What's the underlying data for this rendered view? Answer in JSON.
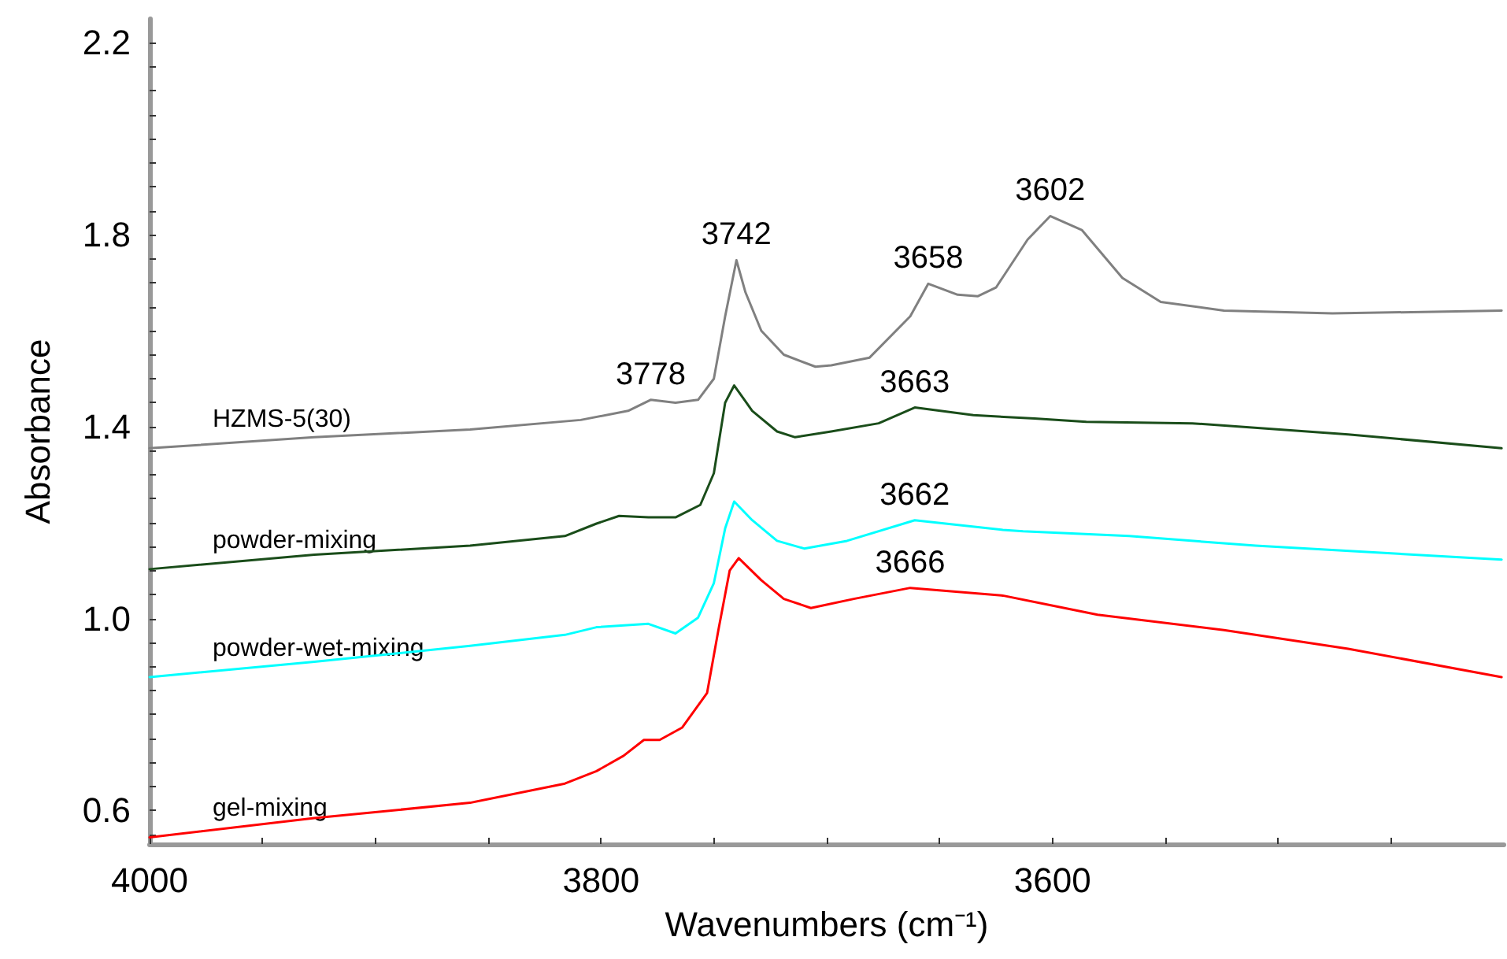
{
  "chart_data": {
    "type": "line",
    "xlabel": "Wavenumbers (cm⁻¹)",
    "ylabel": "Absorbance",
    "xlim": [
      4000,
      3400
    ],
    "ylim": [
      0.53,
      2.25
    ],
    "xticks": [
      4000,
      {
        "value": 3950,
        "label": null
      },
      {
        "value": 3900,
        "label": null
      },
      {
        "value": 3850,
        "label": null
      },
      3800,
      {
        "value": 3750,
        "label": null
      },
      {
        "value": 3700,
        "label": null
      },
      {
        "value": 3650,
        "label": null
      },
      3600,
      {
        "value": 3550,
        "label": null
      },
      {
        "value": 3500,
        "label": null
      },
      {
        "value": 3450,
        "label": null
      }
    ],
    "yticks": [
      {
        "value": 0.55,
        "label": null
      },
      0.6,
      {
        "value": 0.65,
        "label": null
      },
      {
        "value": 0.7,
        "label": null
      },
      {
        "value": 0.75,
        "label": null
      },
      {
        "value": 0.8,
        "label": null
      },
      {
        "value": 0.85,
        "label": null
      },
      {
        "value": 0.9,
        "label": null
      },
      {
        "value": 0.95,
        "label": null
      },
      {
        "value": 1.0,
        "label": "1.0"
      },
      {
        "value": 1.05,
        "label": null
      },
      {
        "value": 1.1,
        "label": null
      },
      {
        "value": 1.15,
        "label": null
      },
      {
        "value": 1.2,
        "label": null
      },
      {
        "value": 1.25,
        "label": null
      },
      {
        "value": 1.3,
        "label": null
      },
      {
        "value": 1.35,
        "label": null
      },
      1.4,
      {
        "value": 1.45,
        "label": null
      },
      {
        "value": 1.5,
        "label": null
      },
      {
        "value": 1.55,
        "label": null
      },
      {
        "value": 1.6,
        "label": null
      },
      {
        "value": 1.65,
        "label": null
      },
      {
        "value": 1.7,
        "label": null
      },
      {
        "value": 1.75,
        "label": null
      },
      1.8,
      {
        "value": 1.85,
        "label": null
      },
      {
        "value": 1.9,
        "label": null
      },
      {
        "value": 1.95,
        "label": null
      },
      {
        "value": 2.0,
        "label": null
      },
      {
        "value": 2.05,
        "label": null
      },
      {
        "value": 2.1,
        "label": null
      },
      {
        "value": 2.15,
        "label": null
      },
      2.2
    ],
    "grid": false,
    "legend": false,
    "marker": "none",
    "line_style": "solid",
    "series": [
      {
        "name": "HZMS-5(30)",
        "color": "#808080",
        "x": [
          4000,
          3927,
          3858,
          3809,
          3788,
          3778,
          3767,
          3757,
          3750,
          3745,
          3740,
          3736,
          3729,
          3719,
          3705,
          3698,
          3681,
          3663,
          3655,
          3642,
          3633,
          3625,
          3611,
          3601,
          3587,
          3569,
          3552,
          3524,
          3476,
          3401
        ],
        "values": [
          1.355,
          1.378,
          1.394,
          1.414,
          1.433,
          1.456,
          1.45,
          1.456,
          1.5,
          1.63,
          1.747,
          1.68,
          1.6,
          1.55,
          1.525,
          1.528,
          1.544,
          1.63,
          1.698,
          1.675,
          1.672,
          1.69,
          1.79,
          1.839,
          1.81,
          1.71,
          1.66,
          1.642,
          1.636,
          1.642
        ]
      },
      {
        "name": "powder-mixing",
        "color": "#1a4d1a",
        "x": [
          4000,
          3927,
          3858,
          3816,
          3802,
          3792,
          3779,
          3767,
          3756,
          3750,
          3745,
          3741,
          3733,
          3722,
          3714,
          3698,
          3677,
          3661,
          3635,
          3608,
          3585,
          3538,
          3469,
          3401
        ],
        "values": [
          1.103,
          1.133,
          1.152,
          1.172,
          1.198,
          1.214,
          1.211,
          1.211,
          1.237,
          1.303,
          1.45,
          1.486,
          1.433,
          1.39,
          1.378,
          1.39,
          1.407,
          1.44,
          1.424,
          1.417,
          1.41,
          1.407,
          1.384,
          1.355
        ]
      },
      {
        "name": "powder-wet-mixing",
        "color": "#00ffff",
        "x": [
          4000,
          3927,
          3858,
          3816,
          3802,
          3779,
          3767,
          3757,
          3750,
          3745,
          3741,
          3733,
          3722,
          3710,
          3691,
          3661,
          3622,
          3613,
          3566,
          3510,
          3401
        ],
        "values": [
          0.878,
          0.91,
          0.943,
          0.966,
          0.982,
          0.989,
          0.969,
          1.002,
          1.074,
          1.188,
          1.244,
          1.205,
          1.162,
          1.146,
          1.162,
          1.205,
          1.185,
          1.182,
          1.172,
          1.152,
          1.123
        ]
      },
      {
        "name": "gel-mixing",
        "color": "#ff0000",
        "x": [
          4000,
          3927,
          3858,
          3816,
          3802,
          3790,
          3781,
          3774,
          3764,
          3753,
          3748,
          3743,
          3739,
          3729,
          3719,
          3707,
          3688,
          3663,
          3622,
          3580,
          3524,
          3469,
          3401
        ],
        "values": [
          0.544,
          0.584,
          0.616,
          0.656,
          0.682,
          0.714,
          0.747,
          0.747,
          0.773,
          0.845,
          0.976,
          1.1,
          1.126,
          1.08,
          1.041,
          1.022,
          1.041,
          1.064,
          1.048,
          1.008,
          0.976,
          0.937,
          0.878
        ]
      }
    ],
    "annotations": [
      {
        "text": "3778",
        "x": 3778,
        "y": 1.456
      },
      {
        "text": "3742",
        "x": 3740,
        "y": 1.747
      },
      {
        "text": "3658",
        "x": 3655,
        "y": 1.698
      },
      {
        "text": "3602",
        "x": 3601,
        "y": 1.839
      },
      {
        "text": "3663",
        "x": 3661,
        "y": 1.44
      },
      {
        "text": "3662",
        "x": 3661,
        "y": 1.205
      },
      {
        "text": "3666",
        "x": 3663,
        "y": 1.064
      }
    ]
  }
}
